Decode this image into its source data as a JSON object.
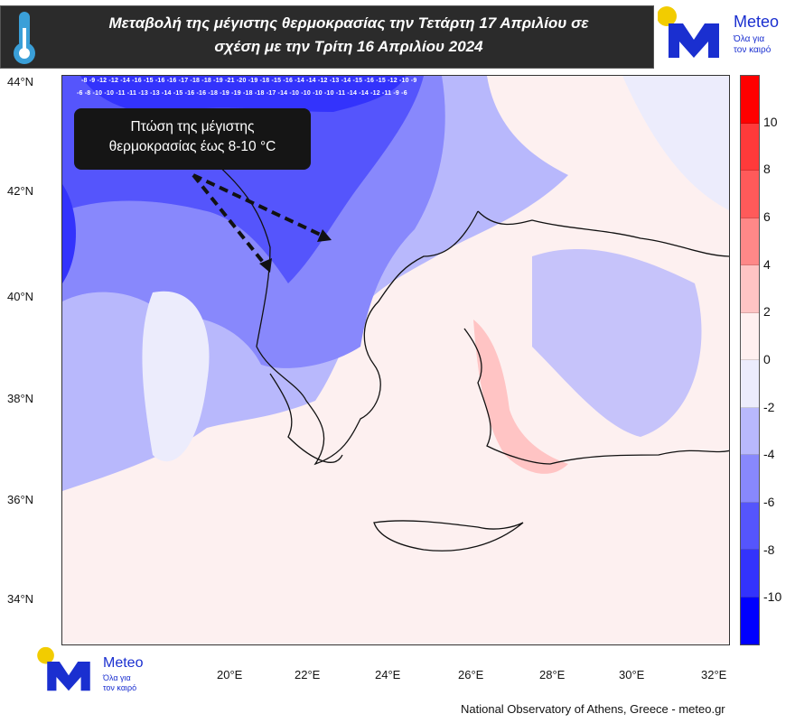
{
  "header": {
    "title_line1": "Μεταβολή της μέγιστης θερμοκρασίας την Τετάρτη 17 Απριλίου σε",
    "title_line2": "σχέση με την Τρίτη 16 Απριλίου 2024"
  },
  "logo": {
    "name": "Meteo",
    "tagline1": "Όλα για",
    "tagline2": "τον καιρό"
  },
  "callout": {
    "line1": "Πτώση της μέγιστης",
    "line2": "θερμοκρασίας έως 8-10 °C"
  },
  "axes": {
    "lat_ticks": [
      "44°N",
      "42°N",
      "40°N",
      "38°N",
      "36°N",
      "34°N"
    ],
    "lon_ticks": [
      "20°E",
      "22°E",
      "24°E",
      "26°E",
      "28°E",
      "30°E",
      "32°E"
    ]
  },
  "colorbar": {
    "labels": [
      "10",
      "8",
      "6",
      "4",
      "2",
      "0",
      "-2",
      "-4",
      "-6",
      "-8",
      "-10"
    ],
    "colors": [
      "#ff0000",
      "#ff3a3a",
      "#ff5a5a",
      "#ff8888",
      "#ffc4c4",
      "#fff0f0",
      "#ececfc",
      "#b8b8fc",
      "#8888fc",
      "#5555fc",
      "#3333fc",
      "#0000ff"
    ]
  },
  "grid_values": {
    "row1": "-8 -9 -12 -12 -14 -16 -15 -16 -16 -17 -18 -18 -19 -21 -20 -19 -18 -15 -16 -14 -14 -12 -13 -14 -15 -16 -15 -12 -10 -9",
    "row2": "-6 -8 -10 -10 -11 -11 -13 -13 -14 -15 -16 -16 -18 -19 -19 -18 -18 -17 -14 -10 -10 -10 -10 -11 -14 -14 -12 -11 -9 -6"
  },
  "footer": {
    "credit": "National Observatory of Athens, Greece - meteo.gr"
  }
}
